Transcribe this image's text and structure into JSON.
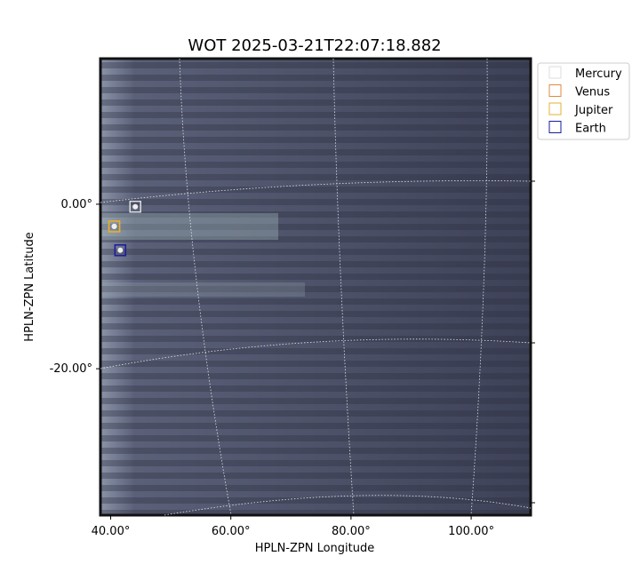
{
  "chart_data": {
    "type": "scatter",
    "title": "WOT 2025-03-21T22:07:18.882",
    "x_label": "HPLN-ZPN Longitude",
    "y_label": "HPLN-ZPN Latitude",
    "xlim": [
      38.3,
      109.9
    ],
    "ylim": [
      -37.8,
      17.7
    ],
    "xticks": [
      {
        "value": 40,
        "label": "40.00°"
      },
      {
        "value": 60,
        "label": "60.00°"
      },
      {
        "value": 80,
        "label": "80.00°"
      },
      {
        "value": 100,
        "label": "100.00°"
      }
    ],
    "yticks": [
      {
        "value": 0,
        "label": "0.00°"
      },
      {
        "value": -20,
        "label": "-20.00°"
      }
    ],
    "legend": "upper right outside",
    "series": [
      {
        "name": "Mercury",
        "color": "#dddddd",
        "x": [
          44.1
        ],
        "y": [
          -0.3
        ]
      },
      {
        "name": "Venus",
        "color": "#e08a3c",
        "x": [
          40.6
        ],
        "y": [
          -2.7
        ]
      },
      {
        "name": "Jupiter",
        "color": "#e6b030",
        "x": [
          40.6
        ],
        "y": [
          -2.7
        ]
      },
      {
        "name": "Earth",
        "color": "#1a1aa0",
        "x": [
          41.6
        ],
        "y": [
          -5.6
        ]
      }
    ]
  }
}
